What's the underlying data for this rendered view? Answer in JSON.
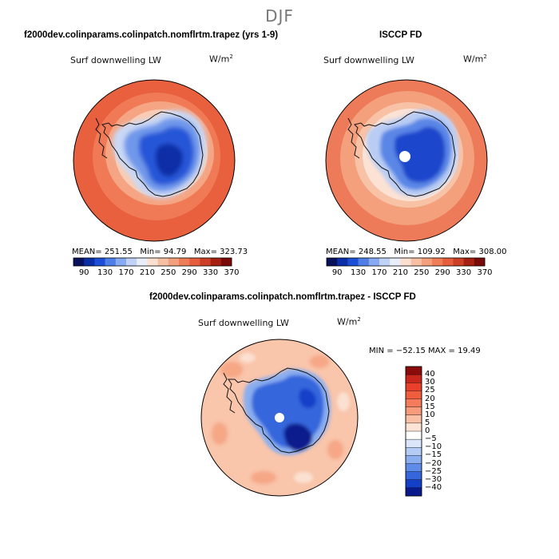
{
  "figure": {
    "title": "DJF"
  },
  "chart_data": [
    {
      "type": "heatmap",
      "projection": "south-polar-stereographic",
      "title": "f2000dev.colinparams.colinpatch.nomflrtm.trapez (yrs 1-9)",
      "variable": "Surf downwelling LW",
      "units": "W/m",
      "units_exponent": "2",
      "stats": {
        "mean": "251.55",
        "min": "94.79",
        "max": "323.73"
      },
      "stats_labels": {
        "mean": "MEAN=",
        "min": "Min=",
        "max": "Max="
      },
      "colorbar": {
        "ticks": [
          "90",
          "130",
          "170",
          "210",
          "250",
          "290",
          "330",
          "370"
        ],
        "colors": [
          "#08125c",
          "#0a2ea8",
          "#1c4fd6",
          "#4f7fe6",
          "#87aaf0",
          "#c0d3f7",
          "#e9eefb",
          "#fbe0d0",
          "#f7c0a4",
          "#f5a07c",
          "#ef7e58",
          "#e65e3c",
          "#cc3e26",
          "#a52012",
          "#7a0a08"
        ]
      }
    },
    {
      "type": "heatmap",
      "projection": "south-polar-stereographic",
      "title": "ISCCP FD",
      "variable": "Surf downwelling LW",
      "units": "W/m",
      "units_exponent": "2",
      "stats": {
        "mean": "248.55",
        "min": "109.92",
        "max": "308.00"
      },
      "stats_labels": {
        "mean": "MEAN=",
        "min": "Min=",
        "max": "Max="
      },
      "colorbar": {
        "ticks": [
          "90",
          "130",
          "170",
          "210",
          "250",
          "290",
          "330",
          "370"
        ],
        "colors": [
          "#08125c",
          "#0a2ea8",
          "#1c4fd6",
          "#4f7fe6",
          "#87aaf0",
          "#c0d3f7",
          "#e9eefb",
          "#fbe0d0",
          "#f7c0a4",
          "#f5a07c",
          "#ef7e58",
          "#e65e3c",
          "#cc3e26",
          "#a52012",
          "#7a0a08"
        ]
      }
    },
    {
      "type": "heatmap",
      "projection": "south-polar-stereographic",
      "title": "f2000dev.colinparams.colinpatch.nomflrtm.trapez - ISCCP FD",
      "variable": "Surf downwelling LW",
      "units": "W/m",
      "units_exponent": "2",
      "stats": {
        "min": "−52.15",
        "max": "19.49"
      },
      "stats_labels": {
        "min": "MIN =",
        "max": "MAX ="
      },
      "colorbar": {
        "levels": [
          "40",
          "30",
          "25",
          "20",
          "15",
          "10",
          "5",
          "0",
          "−5",
          "−10",
          "−15",
          "−20",
          "−25",
          "−30",
          "−40"
        ],
        "colors": [
          "#8b0a0a",
          "#c9261c",
          "#e8402a",
          "#f05d3c",
          "#f47c5c",
          "#f69c7c",
          "#f9c0a6",
          "#fbe4d6",
          "#ffffff",
          "#dbe6fb",
          "#b4cbf5",
          "#8aaef0",
          "#5f8ce8",
          "#3566dc",
          "#1440c8",
          "#0a1a8c"
        ]
      }
    }
  ]
}
